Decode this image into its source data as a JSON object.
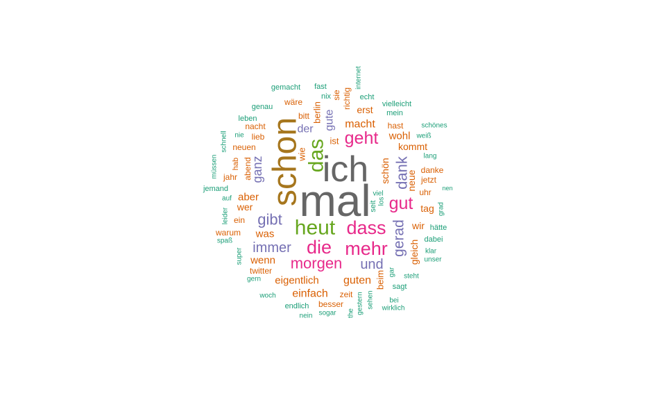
{
  "colors": {
    "background": "#ffffff",
    "teal": "#1b9e77",
    "orange": "#d95f02",
    "purple": "#7570b3",
    "magenta": "#e7298a",
    "green": "#66a61e",
    "gold": "#a6761d",
    "gray": "#666666"
  },
  "chart_data": {
    "type": "wordcloud",
    "title": "",
    "words": [
      {
        "text": "mal",
        "color": "gray"
      },
      {
        "text": "ich",
        "color": "gray"
      },
      {
        "text": "schon",
        "color": "gold"
      },
      {
        "text": "heut",
        "color": "green"
      },
      {
        "text": "das",
        "color": "green"
      },
      {
        "text": "dass",
        "color": "magenta"
      },
      {
        "text": "die",
        "color": "magenta"
      },
      {
        "text": "mehr",
        "color": "magenta"
      },
      {
        "text": "geht",
        "color": "magenta"
      },
      {
        "text": "gut",
        "color": "magenta"
      },
      {
        "text": "morgen",
        "color": "magenta"
      },
      {
        "text": "immer",
        "color": "purple"
      },
      {
        "text": "gibt",
        "color": "purple"
      },
      {
        "text": "und",
        "color": "purple"
      },
      {
        "text": "dank",
        "color": "purple"
      },
      {
        "text": "gerad",
        "color": "purple"
      },
      {
        "text": "ganz",
        "color": "purple"
      },
      {
        "text": "der",
        "color": "purple"
      },
      {
        "text": "gute",
        "color": "purple"
      },
      {
        "text": "macht",
        "color": "orange"
      },
      {
        "text": "erst",
        "color": "orange"
      },
      {
        "text": "wohl",
        "color": "orange"
      },
      {
        "text": "kommt",
        "color": "orange"
      },
      {
        "text": "aber",
        "color": "orange"
      },
      {
        "text": "wer",
        "color": "orange"
      },
      {
        "text": "was",
        "color": "orange"
      },
      {
        "text": "wenn",
        "color": "orange"
      },
      {
        "text": "eigentlich",
        "color": "orange"
      },
      {
        "text": "einfach",
        "color": "orange"
      },
      {
        "text": "guten",
        "color": "orange"
      },
      {
        "text": "wir",
        "color": "orange"
      },
      {
        "text": "tag",
        "color": "orange"
      },
      {
        "text": "neue",
        "color": "orange"
      },
      {
        "text": "gleich",
        "color": "orange"
      },
      {
        "text": "schön",
        "color": "orange"
      },
      {
        "text": "beim",
        "color": "orange"
      },
      {
        "text": "wie",
        "color": "orange"
      },
      {
        "text": "ist",
        "color": "orange"
      },
      {
        "text": "berlin",
        "color": "orange"
      },
      {
        "text": "wäre",
        "color": "orange"
      },
      {
        "text": "bitt",
        "color": "orange"
      },
      {
        "text": "sie",
        "color": "orange"
      },
      {
        "text": "richtig",
        "color": "orange"
      },
      {
        "text": "hast",
        "color": "orange"
      },
      {
        "text": "lieb",
        "color": "orange"
      },
      {
        "text": "neuen",
        "color": "orange"
      },
      {
        "text": "nacht",
        "color": "orange"
      },
      {
        "text": "abend",
        "color": "orange"
      },
      {
        "text": "jahr",
        "color": "orange"
      },
      {
        "text": "hab",
        "color": "orange"
      },
      {
        "text": "ein",
        "color": "orange"
      },
      {
        "text": "warum",
        "color": "orange"
      },
      {
        "text": "besser",
        "color": "orange"
      },
      {
        "text": "zeit",
        "color": "orange"
      },
      {
        "text": "danke",
        "color": "orange"
      },
      {
        "text": "jetzt",
        "color": "orange"
      },
      {
        "text": "uhr",
        "color": "orange"
      },
      {
        "text": "twitter",
        "color": "orange"
      },
      {
        "text": "gemacht",
        "color": "teal"
      },
      {
        "text": "fast",
        "color": "teal"
      },
      {
        "text": "nix",
        "color": "teal"
      },
      {
        "text": "internet",
        "color": "teal"
      },
      {
        "text": "echt",
        "color": "teal"
      },
      {
        "text": "vielleicht",
        "color": "teal"
      },
      {
        "text": "mein",
        "color": "teal"
      },
      {
        "text": "genau",
        "color": "teal"
      },
      {
        "text": "leben",
        "color": "teal"
      },
      {
        "text": "schönes",
        "color": "teal"
      },
      {
        "text": "weiß",
        "color": "teal"
      },
      {
        "text": "nie",
        "color": "teal"
      },
      {
        "text": "schnell",
        "color": "teal"
      },
      {
        "text": "müssen",
        "color": "teal"
      },
      {
        "text": "lang",
        "color": "teal"
      },
      {
        "text": "jemand",
        "color": "teal"
      },
      {
        "text": "auf",
        "color": "teal"
      },
      {
        "text": "leider",
        "color": "teal"
      },
      {
        "text": "spaß",
        "color": "teal"
      },
      {
        "text": "super",
        "color": "teal"
      },
      {
        "text": "gern",
        "color": "teal"
      },
      {
        "text": "woch",
        "color": "teal"
      },
      {
        "text": "endlich",
        "color": "teal"
      },
      {
        "text": "nein",
        "color": "teal"
      },
      {
        "text": "sogar",
        "color": "teal"
      },
      {
        "text": "the",
        "color": "teal"
      },
      {
        "text": "gestern",
        "color": "teal"
      },
      {
        "text": "sehen",
        "color": "teal"
      },
      {
        "text": "wirklich",
        "color": "teal"
      },
      {
        "text": "bei",
        "color": "teal"
      },
      {
        "text": "sagt",
        "color": "teal"
      },
      {
        "text": "steht",
        "color": "teal"
      },
      {
        "text": "gar",
        "color": "teal"
      },
      {
        "text": "unser",
        "color": "teal"
      },
      {
        "text": "klar",
        "color": "teal"
      },
      {
        "text": "dabei",
        "color": "teal"
      },
      {
        "text": "hätte",
        "color": "teal"
      },
      {
        "text": "grad",
        "color": "teal"
      },
      {
        "text": "nen",
        "color": "teal"
      },
      {
        "text": "viel",
        "color": "teal"
      },
      {
        "text": "seit",
        "color": "teal"
      },
      {
        "text": "los",
        "color": "teal"
      }
    ]
  }
}
